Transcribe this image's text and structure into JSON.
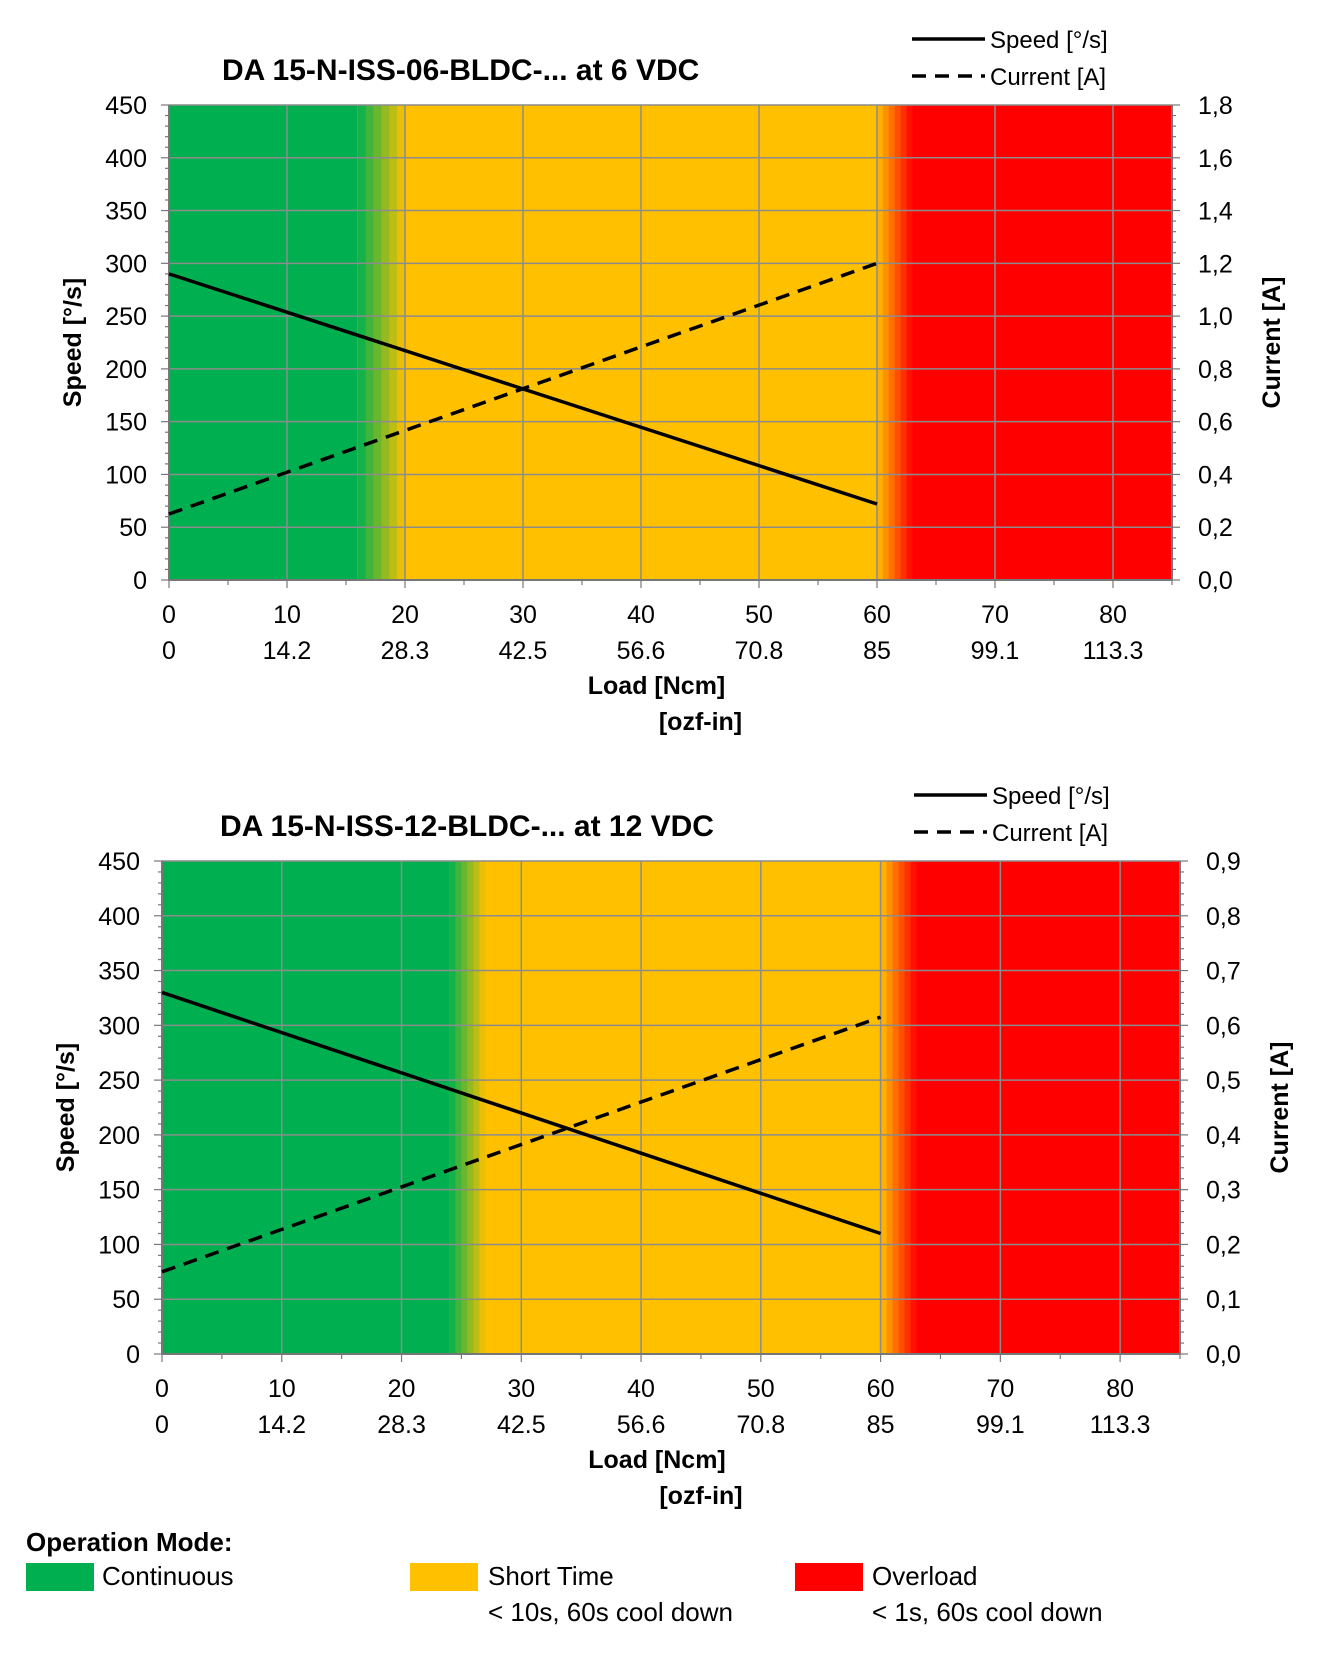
{
  "chart_data": [
    {
      "type": "line",
      "title": "DA 15-N-ISS-06-BLDC-... at 6 VDC",
      "xlabel": "Load [Ncm]",
      "xlabel2": "[ozf-in]",
      "ylabel": "Speed [°/s]",
      "y2label": "Current [A]",
      "xlim": [
        0,
        85
      ],
      "ylim": [
        0,
        450
      ],
      "y2lim": [
        0,
        1.8
      ],
      "x_ticks": [
        "0",
        "10",
        "20",
        "30",
        "40",
        "50",
        "60",
        "70",
        "80"
      ],
      "x2_ticks": [
        "0",
        "14.2",
        "28.3",
        "42.5",
        "56.6",
        "70.8",
        "85",
        "99.1",
        "113.3"
      ],
      "y_ticks": [
        "0",
        "50",
        "100",
        "150",
        "200",
        "250",
        "300",
        "350",
        "400",
        "450"
      ],
      "y2_ticks": [
        "0,0",
        "0,2",
        "0,4",
        "0,6",
        "0,8",
        "1,0",
        "1,2",
        "1,4",
        "1,6",
        "1,8"
      ],
      "grid": true,
      "legend_position": "top-right",
      "zones": {
        "continuous_end": 16,
        "short_time_start": 20,
        "short_time_end": 60,
        "overload_start": 63
      },
      "series": [
        {
          "name": "Speed [°/s]",
          "axis": "left",
          "style": "solid",
          "x": [
            0,
            60
          ],
          "y": [
            290,
            72
          ]
        },
        {
          "name": "Current [A]",
          "axis": "right",
          "style": "dashed",
          "x": [
            0,
            60
          ],
          "y": [
            0.25,
            1.2
          ]
        }
      ]
    },
    {
      "type": "line",
      "title": "DA 15-N-ISS-12-BLDC-... at 12 VDC",
      "xlabel": "Load [Ncm]",
      "xlabel2": "[ozf-in]",
      "ylabel": "Speed [°/s]",
      "y2label": "Current [A]",
      "xlim": [
        0,
        85
      ],
      "ylim": [
        0,
        450
      ],
      "y2lim": [
        0,
        0.9
      ],
      "x_ticks": [
        "0",
        "10",
        "20",
        "30",
        "40",
        "50",
        "60",
        "70",
        "80"
      ],
      "x2_ticks": [
        "0",
        "14.2",
        "28.3",
        "42.5",
        "56.6",
        "70.8",
        "85",
        "99.1",
        "113.3"
      ],
      "y_ticks": [
        "0",
        "50",
        "100",
        "150",
        "200",
        "250",
        "300",
        "350",
        "400",
        "450"
      ],
      "y2_ticks": [
        "0,0",
        "0,1",
        "0,2",
        "0,3",
        "0,4",
        "0,5",
        "0,6",
        "0,7",
        "0,8",
        "0,9"
      ],
      "grid": true,
      "legend_position": "top-right",
      "zones": {
        "continuous_end": 24,
        "short_time_start": 27,
        "short_time_end": 60,
        "overload_start": 63
      },
      "series": [
        {
          "name": "Speed [°/s]",
          "axis": "left",
          "style": "solid",
          "x": [
            0,
            60
          ],
          "y": [
            330,
            110
          ]
        },
        {
          "name": "Current [A]",
          "axis": "right",
          "style": "dashed",
          "x": [
            0,
            60
          ],
          "y": [
            0.15,
            0.615
          ]
        }
      ]
    }
  ],
  "legend": {
    "title": "Operation Mode:",
    "continuous": {
      "label": "Continuous",
      "color": "#00b050"
    },
    "short_time": {
      "label": "Short Time",
      "note": "< 10s, 60s cool down",
      "color": "#ffc000"
    },
    "overload": {
      "label": "Overload",
      "note": "< 1s, 60s cool down",
      "color": "#ff0000"
    }
  }
}
